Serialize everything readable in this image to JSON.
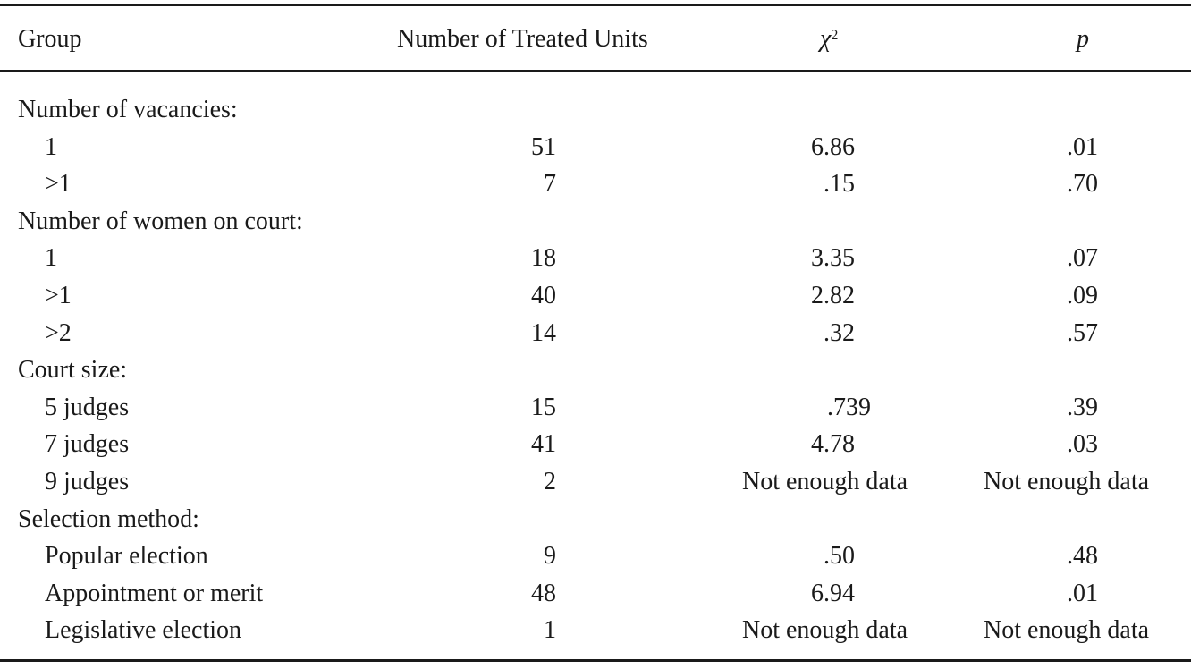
{
  "table": {
    "headers": {
      "group": "Group",
      "units": "Number of Treated Units",
      "chi": "χ",
      "chi_sup": "2",
      "p": "p"
    },
    "sections": [
      {
        "title": "Number of vacancies:",
        "rows": [
          {
            "group": "1",
            "units": "51",
            "chi": "6.86",
            "p": ".01"
          },
          {
            "group": ">1",
            "units": "7",
            "chi": ".15",
            "p": ".70"
          }
        ]
      },
      {
        "title": "Number of women on court:",
        "rows": [
          {
            "group": "1",
            "units": "18",
            "chi": "3.35",
            "p": ".07"
          },
          {
            "group": ">1",
            "units": "40",
            "chi": "2.82",
            "p": ".09"
          },
          {
            "group": ">2",
            "units": "14",
            "chi": ".32",
            "p": ".57"
          }
        ]
      },
      {
        "title": "Court size:",
        "rows": [
          {
            "group": "5 judges",
            "units": "15",
            "chi": ".739",
            "p": ".39"
          },
          {
            "group": "7 judges",
            "units": "41",
            "chi": "4.78",
            "p": ".03"
          },
          {
            "group": "9 judges",
            "units": "2",
            "chi": "Not enough data",
            "p": "Not enough data"
          }
        ]
      },
      {
        "title": "Selection method:",
        "rows": [
          {
            "group": "Popular election",
            "units": "9",
            "chi": ".50",
            "p": ".48"
          },
          {
            "group": "Appointment or merit",
            "units": "48",
            "chi": "6.94",
            "p": ".01"
          },
          {
            "group": "Legislative election",
            "units": "1",
            "chi": "Not enough data",
            "p": "Not enough data"
          }
        ]
      }
    ]
  }
}
